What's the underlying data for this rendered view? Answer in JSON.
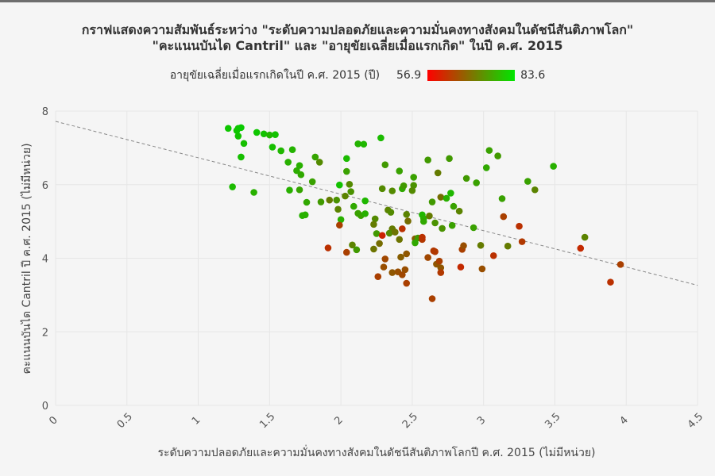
{
  "chart_data": {
    "type": "scatter",
    "title_line1": "กราฟแสดงความสัมพันธ์ระหว่าง \"ระดับความปลอดภัยและความมั่นคงทางสังคมในดัชนีสันติภาพโลก\"",
    "title_line2": "\"คะแนนบันได Cantril\" และ \"อายุขัยเฉลี่ยเมื่อแรกเกิด\" ในปี ค.ศ. 2015",
    "xlabel": "ระดับความปลอดภัยและความมั่นคงทางสังคมในดัชนีสันติภาพโลกปี ค.ศ. 2015 (ไม่มีหน่วย)",
    "ylabel": "คะแนนบันได Cantril ปี ค.ศ. 2015 (ไม่มีหน่วย)",
    "color_label": "อายุขัยเฉลี่ยเมื่อแรกเกิดในปี ค.ศ. 2015 (ปี)",
    "color_min": 56.9,
    "color_max": 83.6,
    "color_min_label": "56.9",
    "color_max_label": "83.6",
    "xlim": [
      0,
      4.5
    ],
    "ylim": [
      0,
      8
    ],
    "xticks": [
      0,
      0.5,
      1,
      1.5,
      2,
      2.5,
      3,
      3.5,
      4,
      4.5
    ],
    "xtick_labels": [
      "0",
      "0.5",
      "1",
      "1.5",
      "2",
      "2.5",
      "3",
      "3.5",
      "4",
      "4.5"
    ],
    "yticks": [
      0,
      2,
      4,
      6,
      8
    ],
    "ytick_labels": [
      "0",
      "2",
      "4",
      "6",
      "8"
    ],
    "trendline": {
      "intercept": 7.72,
      "slope": -0.99
    },
    "points": [
      [
        1.21,
        7.53,
        82
      ],
      [
        1.27,
        7.47,
        82
      ],
      [
        1.28,
        7.53,
        82
      ],
      [
        1.3,
        7.55,
        82.5
      ],
      [
        1.28,
        7.32,
        81.5
      ],
      [
        1.32,
        7.12,
        81
      ],
      [
        1.3,
        6.75,
        81
      ],
      [
        1.41,
        7.42,
        82
      ],
      [
        1.46,
        7.38,
        81.5
      ],
      [
        1.5,
        7.35,
        80
      ],
      [
        1.54,
        7.36,
        81.5
      ],
      [
        1.52,
        7.02,
        81
      ],
      [
        1.58,
        6.92,
        80
      ],
      [
        1.63,
        6.61,
        79
      ],
      [
        1.66,
        6.95,
        79.5
      ],
      [
        1.69,
        6.38,
        78.5
      ],
      [
        1.71,
        6.52,
        79
      ],
      [
        1.72,
        6.27,
        78
      ],
      [
        1.75,
        5.18,
        79
      ],
      [
        1.73,
        5.16,
        79
      ],
      [
        1.64,
        5.85,
        79
      ],
      [
        1.71,
        5.86,
        77.5
      ],
      [
        1.76,
        5.52,
        78
      ],
      [
        1.8,
        6.08,
        77
      ],
      [
        1.82,
        6.75,
        77.5
      ],
      [
        1.85,
        6.61,
        74
      ],
      [
        1.24,
        5.94,
        80.5
      ],
      [
        1.39,
        5.79,
        79
      ],
      [
        1.86,
        5.53,
        76
      ],
      [
        1.92,
        5.58,
        72
      ],
      [
        1.91,
        4.28,
        62
      ],
      [
        1.97,
        5.58,
        75
      ],
      [
        1.99,
        5.99,
        81.5
      ],
      [
        1.98,
        5.33,
        73
      ],
      [
        2.0,
        5.05,
        79
      ],
      [
        1.99,
        4.9,
        64
      ],
      [
        2.04,
        6.36,
        77
      ],
      [
        2.04,
        6.71,
        80.5
      ],
      [
        2.06,
        6.01,
        74
      ],
      [
        2.07,
        5.81,
        75
      ],
      [
        2.03,
        5.69,
        73
      ],
      [
        2.09,
        5.41,
        78
      ],
      [
        2.12,
        5.22,
        77
      ],
      [
        2.14,
        5.16,
        77
      ],
      [
        2.17,
        5.21,
        79
      ],
      [
        2.17,
        5.56,
        80
      ],
      [
        2.12,
        7.11,
        79.5
      ],
      [
        2.16,
        7.1,
        80
      ],
      [
        2.28,
        7.27,
        80.5
      ],
      [
        2.24,
        5.07,
        74
      ],
      [
        2.23,
        4.92,
        72
      ],
      [
        2.25,
        4.67,
        76
      ],
      [
        2.08,
        4.36,
        73
      ],
      [
        2.04,
        4.16,
        64
      ],
      [
        2.11,
        4.23,
        76
      ],
      [
        2.23,
        4.25,
        71
      ],
      [
        2.27,
        4.4,
        70
      ],
      [
        2.29,
        4.62,
        60
      ],
      [
        2.33,
        5.31,
        73
      ],
      [
        2.35,
        5.25,
        74
      ],
      [
        2.36,
        4.8,
        72
      ],
      [
        2.34,
        4.68,
        74
      ],
      [
        2.38,
        4.71,
        71
      ],
      [
        2.43,
        4.8,
        62
      ],
      [
        2.29,
        5.89,
        74
      ],
      [
        2.36,
        5.83,
        74
      ],
      [
        2.31,
        6.54,
        76
      ],
      [
        2.41,
        6.37,
        77
      ],
      [
        2.43,
        5.89,
        78
      ],
      [
        2.44,
        5.97,
        76
      ],
      [
        2.46,
        5.19,
        73
      ],
      [
        2.47,
        5.01,
        70
      ],
      [
        2.41,
        4.51,
        71
      ],
      [
        2.46,
        4.12,
        67
      ],
      [
        2.42,
        4.03,
        68
      ],
      [
        2.31,
        3.98,
        65
      ],
      [
        2.36,
        3.61,
        67
      ],
      [
        2.4,
        3.63,
        66
      ],
      [
        2.3,
        3.76,
        66
      ],
      [
        2.26,
        3.5,
        64
      ],
      [
        2.43,
        3.55,
        65
      ],
      [
        2.45,
        3.69,
        66
      ],
      [
        2.46,
        3.32,
        64
      ],
      [
        2.51,
        5.98,
        75
      ],
      [
        2.5,
        5.84,
        74
      ],
      [
        2.51,
        6.2,
        77
      ],
      [
        2.52,
        4.53,
        68
      ],
      [
        2.54,
        4.55,
        76
      ],
      [
        2.52,
        4.42,
        78
      ],
      [
        2.57,
        5.18,
        80
      ],
      [
        2.58,
        5.08,
        79
      ],
      [
        2.57,
        4.51,
        63
      ],
      [
        2.57,
        4.57,
        62
      ],
      [
        2.58,
        5.0,
        78
      ],
      [
        2.61,
        6.67,
        76
      ],
      [
        2.62,
        5.15,
        72
      ],
      [
        2.61,
        4.02,
        65
      ],
      [
        2.64,
        5.53,
        76
      ],
      [
        2.66,
        4.96,
        75
      ],
      [
        2.65,
        4.2,
        63
      ],
      [
        2.66,
        4.18,
        63
      ],
      [
        2.67,
        3.84,
        67
      ],
      [
        2.69,
        3.92,
        64
      ],
      [
        2.7,
        3.74,
        67
      ],
      [
        2.7,
        3.61,
        63
      ],
      [
        2.68,
        6.32,
        72
      ],
      [
        2.7,
        5.66,
        70
      ],
      [
        2.71,
        4.81,
        75
      ],
      [
        2.74,
        5.63,
        79
      ],
      [
        2.76,
        6.71,
        76
      ],
      [
        2.77,
        5.77,
        80
      ],
      [
        2.79,
        5.41,
        77
      ],
      [
        2.78,
        4.89,
        77
      ],
      [
        2.83,
        5.28,
        73
      ],
      [
        2.85,
        4.24,
        64
      ],
      [
        2.86,
        4.34,
        66
      ],
      [
        2.84,
        3.76,
        61
      ],
      [
        2.64,
        2.9,
        64
      ],
      [
        2.88,
        6.17,
        76
      ],
      [
        2.93,
        4.83,
        77
      ],
      [
        2.95,
        6.05,
        77
      ],
      [
        2.98,
        4.35,
        72
      ],
      [
        2.99,
        3.71,
        66
      ],
      [
        3.02,
        6.46,
        78
      ],
      [
        3.04,
        6.93,
        77
      ],
      [
        3.07,
        4.07,
        62
      ],
      [
        3.1,
        6.78,
        76
      ],
      [
        3.13,
        5.62,
        77
      ],
      [
        3.14,
        5.13,
        64
      ],
      [
        3.17,
        4.33,
        72
      ],
      [
        3.25,
        4.87,
        62
      ],
      [
        3.27,
        4.45,
        63
      ],
      [
        3.31,
        6.09,
        77
      ],
      [
        3.36,
        5.86,
        73
      ],
      [
        3.49,
        6.5,
        79
      ],
      [
        3.68,
        4.27,
        61
      ],
      [
        3.71,
        4.57,
        73
      ],
      [
        3.89,
        3.35,
        62
      ],
      [
        3.96,
        3.83,
        64
      ]
    ]
  }
}
